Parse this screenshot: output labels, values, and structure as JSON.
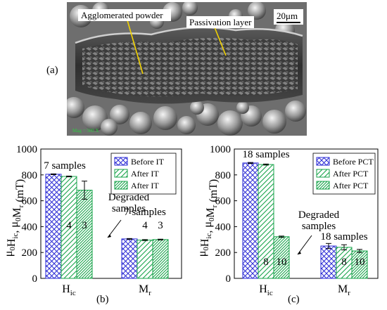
{
  "figure": {
    "panel_labels": [
      "(a)",
      "(b)",
      "(c)"
    ]
  },
  "micrograph": {
    "annotations": [
      "Agglomerated powder",
      "Passivation layer"
    ],
    "scale_bar": "20μm",
    "footer_text": "Mag = 500 X"
  },
  "chart_data": [
    {
      "type": "bar",
      "panel": "(b)",
      "ylabel": "μ0Hic, μ0Mr (mT)",
      "ylim": [
        0,
        1000
      ],
      "yticks": [
        0,
        200,
        400,
        600,
        800,
        1000
      ],
      "categories": [
        "Hic",
        "Mr"
      ],
      "series": [
        {
          "name": "Before IT",
          "values": [
            805,
            305
          ],
          "errors": [
            3,
            3
          ],
          "counts": [
            "",
            ""
          ],
          "pattern": "cross"
        },
        {
          "name": "After IT",
          "values": [
            788,
            296
          ],
          "errors": [
            3,
            4
          ],
          "counts": [
            "4",
            "4"
          ],
          "pattern": "diag"
        },
        {
          "name": "After IT",
          "values": [
            682,
            300
          ],
          "errors": [
            70,
            3
          ],
          "counts": [
            "3",
            "3"
          ],
          "pattern": "dense"
        }
      ],
      "annotations": {
        "group_hic": "7 samples",
        "group_mr": "7 samples",
        "degraded": [
          "Degraded",
          "samples"
        ]
      },
      "legend_position": "top-right"
    },
    {
      "type": "bar",
      "panel": "(c)",
      "ylabel": "μ0Hic, μ0Mr (mT)",
      "ylim": [
        0,
        1000
      ],
      "yticks": [
        0,
        200,
        400,
        600,
        800,
        1000
      ],
      "categories": [
        "Hic",
        "Mr"
      ],
      "series": [
        {
          "name": "Before PCT",
          "values": [
            892,
            250
          ],
          "errors": [
            4,
            20
          ],
          "counts": [
            "",
            ""
          ],
          "pattern": "cross"
        },
        {
          "name": "After PCT",
          "values": [
            880,
            240
          ],
          "errors": [
            4,
            20
          ],
          "counts": [
            "8",
            "8"
          ],
          "pattern": "diag"
        },
        {
          "name": "After PCT",
          "values": [
            322,
            212
          ],
          "errors": [
            5,
            12
          ],
          "counts": [
            "10",
            "10"
          ],
          "pattern": "dense"
        }
      ],
      "annotations": {
        "group_hic": "18 samples",
        "group_mr": "18 samples",
        "degraded": [
          "Degraded",
          "samples"
        ]
      },
      "legend_position": "top-right"
    }
  ],
  "colors": {
    "before": "#2a2ad4",
    "after": "#17a34a"
  }
}
